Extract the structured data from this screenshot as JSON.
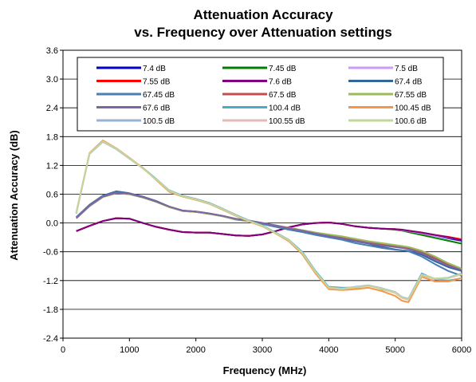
{
  "chart_data": {
    "type": "line",
    "title_line1": "Attenuation Accuracy",
    "title_line2": "vs. Frequency over Attenuation settings",
    "xlabel": "Frequency (MHz)",
    "ylabel": "Attenuation Accuracy (dB)",
    "xlim": [
      0,
      6000
    ],
    "ylim": [
      -2.4,
      3.6
    ],
    "x_ticks": [
      0,
      1000,
      2000,
      3000,
      4000,
      5000,
      6000
    ],
    "y_ticks": [
      -2.4,
      -1.8,
      -1.2,
      -0.6,
      0.0,
      0.6,
      1.2,
      1.8,
      2.4,
      3.0,
      3.6
    ],
    "x_tick_labels": [
      "0",
      "1000",
      "2000",
      "3000",
      "4000",
      "5000",
      "6000"
    ],
    "y_tick_labels": [
      "-2.4",
      "-1.8",
      "-1.2",
      "-0.6",
      "0.0",
      "0.6",
      "1.2",
      "1.8",
      "2.4",
      "3.0",
      "3.6"
    ],
    "grid": "horizontal",
    "legend_placement": "top",
    "x": [
      200,
      400,
      600,
      800,
      1000,
      1200,
      1400,
      1600,
      1800,
      2000,
      2200,
      2400,
      2600,
      2800,
      3000,
      3200,
      3400,
      3600,
      3800,
      4000,
      4200,
      4400,
      4600,
      4800,
      5000,
      5100,
      5200,
      5400,
      5600,
      5800,
      6000
    ],
    "series": [
      {
        "name": "7.4 dB",
        "color": "#0000cc",
        "values": [
          -0.17,
          -0.06,
          0.04,
          0.1,
          0.09,
          0.0,
          -0.08,
          -0.14,
          -0.19,
          -0.2,
          -0.2,
          -0.23,
          -0.26,
          -0.27,
          -0.24,
          -0.17,
          -0.09,
          -0.03,
          0.0,
          0.01,
          -0.02,
          -0.07,
          -0.1,
          -0.12,
          -0.13,
          -0.15,
          -0.17,
          -0.22,
          -0.27,
          -0.32,
          -0.37
        ]
      },
      {
        "name": "7.45 dB",
        "color": "#008000",
        "values": [
          -0.17,
          -0.06,
          0.04,
          0.1,
          0.09,
          0.0,
          -0.08,
          -0.14,
          -0.19,
          -0.2,
          -0.2,
          -0.23,
          -0.26,
          -0.27,
          -0.24,
          -0.17,
          -0.09,
          -0.03,
          0.0,
          0.01,
          -0.02,
          -0.07,
          -0.1,
          -0.12,
          -0.14,
          -0.16,
          -0.19,
          -0.25,
          -0.31,
          -0.37,
          -0.43
        ]
      },
      {
        "name": "7.5 dB",
        "color": "#cc99ff",
        "values": [
          -0.17,
          -0.06,
          0.04,
          0.1,
          0.09,
          0.0,
          -0.08,
          -0.14,
          -0.19,
          -0.2,
          -0.2,
          -0.23,
          -0.26,
          -0.27,
          -0.24,
          -0.17,
          -0.09,
          -0.03,
          0.0,
          0.01,
          -0.02,
          -0.07,
          -0.1,
          -0.12,
          -0.13,
          -0.15,
          -0.17,
          -0.22,
          -0.27,
          -0.31,
          -0.35
        ]
      },
      {
        "name": "7.55 dB",
        "color": "#ff0000",
        "values": [
          -0.17,
          -0.06,
          0.04,
          0.1,
          0.09,
          0.0,
          -0.08,
          -0.14,
          -0.19,
          -0.2,
          -0.2,
          -0.23,
          -0.26,
          -0.27,
          -0.24,
          -0.17,
          -0.09,
          -0.03,
          0.0,
          0.01,
          -0.02,
          -0.07,
          -0.1,
          -0.12,
          -0.13,
          -0.14,
          -0.16,
          -0.2,
          -0.25,
          -0.29,
          -0.34
        ]
      },
      {
        "name": "7.6 dB",
        "color": "#800080",
        "values": [
          -0.17,
          -0.06,
          0.04,
          0.1,
          0.09,
          0.0,
          -0.08,
          -0.14,
          -0.19,
          -0.2,
          -0.2,
          -0.23,
          -0.26,
          -0.27,
          -0.24,
          -0.17,
          -0.09,
          -0.03,
          0.0,
          0.01,
          -0.02,
          -0.07,
          -0.1,
          -0.12,
          -0.13,
          -0.14,
          -0.16,
          -0.2,
          -0.25,
          -0.3,
          -0.36
        ]
      },
      {
        "name": "67.4 dB",
        "color": "#336699",
        "values": [
          0.12,
          0.38,
          0.57,
          0.66,
          0.62,
          0.55,
          0.46,
          0.34,
          0.26,
          0.24,
          0.2,
          0.15,
          0.08,
          0.04,
          -0.02,
          -0.08,
          -0.13,
          -0.18,
          -0.24,
          -0.28,
          -0.33,
          -0.38,
          -0.43,
          -0.5,
          -0.55,
          -0.57,
          -0.58,
          -0.66,
          -0.8,
          -0.92,
          -1.0
        ]
      },
      {
        "name": "67.45 dB",
        "color": "#4a7eb5",
        "values": [
          0.12,
          0.37,
          0.56,
          0.64,
          0.61,
          0.54,
          0.45,
          0.33,
          0.25,
          0.23,
          0.19,
          0.14,
          0.07,
          0.04,
          -0.02,
          -0.08,
          -0.14,
          -0.19,
          -0.25,
          -0.3,
          -0.35,
          -0.42,
          -0.47,
          -0.52,
          -0.56,
          -0.57,
          -0.59,
          -0.7,
          -0.86,
          -1.0,
          -1.1
        ]
      },
      {
        "name": "67.5 dB",
        "color": "#c0504d",
        "values": [
          0.1,
          0.35,
          0.54,
          0.62,
          0.6,
          0.53,
          0.44,
          0.33,
          0.25,
          0.23,
          0.19,
          0.14,
          0.08,
          0.05,
          0.0,
          -0.05,
          -0.1,
          -0.15,
          -0.2,
          -0.25,
          -0.3,
          -0.35,
          -0.4,
          -0.44,
          -0.48,
          -0.5,
          -0.52,
          -0.6,
          -0.73,
          -0.87,
          -0.97
        ]
      },
      {
        "name": "67.55 dB",
        "color": "#9bbb59",
        "values": [
          0.1,
          0.35,
          0.54,
          0.62,
          0.6,
          0.53,
          0.44,
          0.33,
          0.25,
          0.23,
          0.19,
          0.14,
          0.08,
          0.05,
          0.0,
          -0.05,
          -0.1,
          -0.15,
          -0.2,
          -0.24,
          -0.28,
          -0.33,
          -0.38,
          -0.42,
          -0.46,
          -0.48,
          -0.5,
          -0.58,
          -0.7,
          -0.84,
          -0.95
        ]
      },
      {
        "name": "67.6 dB",
        "color": "#8064a2",
        "values": [
          0.1,
          0.36,
          0.55,
          0.63,
          0.61,
          0.54,
          0.45,
          0.34,
          0.26,
          0.24,
          0.2,
          0.15,
          0.09,
          0.05,
          0.0,
          -0.05,
          -0.11,
          -0.16,
          -0.22,
          -0.27,
          -0.32,
          -0.37,
          -0.42,
          -0.47,
          -0.5,
          -0.52,
          -0.54,
          -0.63,
          -0.76,
          -0.89,
          -0.98
        ]
      },
      {
        "name": "100.4 dB",
        "color": "#4bacc6",
        "values": [
          0.2,
          1.45,
          1.7,
          1.55,
          1.35,
          1.15,
          0.92,
          0.68,
          0.57,
          0.5,
          0.42,
          0.3,
          0.17,
          0.05,
          -0.05,
          -0.2,
          -0.35,
          -0.6,
          -1.0,
          -1.33,
          -1.35,
          -1.35,
          -1.3,
          -1.38,
          -1.45,
          -1.55,
          -1.58,
          -1.05,
          -1.18,
          -1.2,
          -1.15
        ]
      },
      {
        "name": "100.45 dB",
        "color": "#f79646",
        "values": [
          0.22,
          1.46,
          1.72,
          1.56,
          1.36,
          1.15,
          0.9,
          0.65,
          0.55,
          0.48,
          0.4,
          0.28,
          0.15,
          0.03,
          -0.07,
          -0.22,
          -0.38,
          -0.65,
          -1.05,
          -1.38,
          -1.4,
          -1.38,
          -1.35,
          -1.42,
          -1.52,
          -1.62,
          -1.65,
          -1.12,
          -1.22,
          -1.22,
          -1.15
        ]
      },
      {
        "name": "100.5 dB",
        "color": "#95b3d7",
        "values": [
          0.21,
          1.44,
          1.69,
          1.54,
          1.34,
          1.14,
          0.91,
          0.67,
          0.56,
          0.49,
          0.41,
          0.29,
          0.16,
          0.04,
          -0.06,
          -0.21,
          -0.36,
          -0.62,
          -1.02,
          -1.34,
          -1.37,
          -1.33,
          -1.3,
          -1.36,
          -1.44,
          -1.54,
          -1.58,
          -1.07,
          -1.16,
          -1.14,
          -1.05
        ]
      },
      {
        "name": "100.55 dB",
        "color": "#e6b9b8",
        "values": [
          0.21,
          1.45,
          1.7,
          1.55,
          1.35,
          1.14,
          0.91,
          0.67,
          0.56,
          0.49,
          0.41,
          0.29,
          0.16,
          0.04,
          -0.06,
          -0.21,
          -0.36,
          -0.62,
          -1.02,
          -1.35,
          -1.38,
          -1.34,
          -1.31,
          -1.37,
          -1.46,
          -1.56,
          -1.6,
          -1.09,
          -1.17,
          -1.15,
          -1.07
        ]
      },
      {
        "name": "100.6 dB",
        "color": "#c3d69b",
        "values": [
          0.21,
          1.45,
          1.7,
          1.55,
          1.35,
          1.14,
          0.91,
          0.67,
          0.56,
          0.49,
          0.41,
          0.29,
          0.16,
          0.04,
          -0.06,
          -0.21,
          -0.36,
          -0.62,
          -1.02,
          -1.35,
          -1.37,
          -1.34,
          -1.31,
          -1.37,
          -1.45,
          -1.55,
          -1.59,
          -1.08,
          -1.16,
          -1.15,
          -1.06
        ]
      }
    ]
  }
}
